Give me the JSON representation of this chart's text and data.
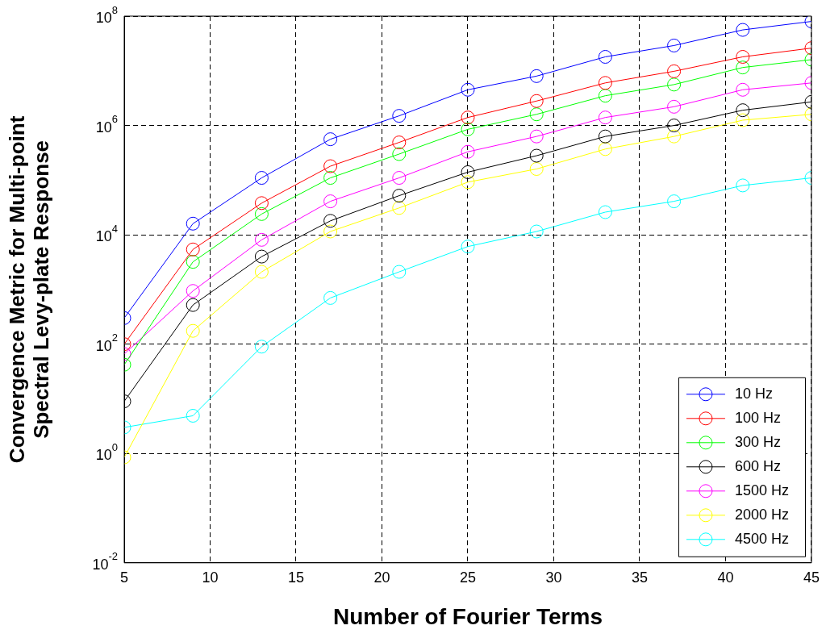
{
  "chart_data": {
    "type": "line",
    "xlabel": "Number of Fourier Terms",
    "ylabel": "Convergence Metric for Multi-point\nSpectral Levy-plate Response",
    "x": [
      5,
      9,
      13,
      17,
      21,
      25,
      29,
      33,
      37,
      41,
      45
    ],
    "xlim": [
      5,
      45
    ],
    "xticks": [
      5,
      10,
      15,
      20,
      25,
      30,
      35,
      40,
      45
    ],
    "ylim": [
      0.01,
      100000000
    ],
    "yticks": [
      {
        "value": 0.01,
        "label": "10$^{-2}$"
      },
      {
        "value": 1,
        "label": "10$^{0}$"
      },
      {
        "value": 100,
        "label": "10$^{2}$"
      },
      {
        "value": 10000,
        "label": "10$^{4}$"
      },
      {
        "value": 1000000,
        "label": "10$^{6}$"
      },
      {
        "value": 100000000,
        "label": "10$^{8}$"
      }
    ],
    "log": "y",
    "grid": true,
    "legend": "bottom right",
    "marker": "circle",
    "line_style": "solid",
    "series": [
      {
        "name": "10 Hz",
        "color": "#0000ff",
        "values": [
          300,
          16000,
          110000,
          560000,
          1500000,
          4500000,
          8000000,
          18000000,
          29000000,
          56000000,
          80000000
        ]
      },
      {
        "name": "100 Hz",
        "color": "#ff0000",
        "values": [
          100,
          5400,
          38000,
          180000,
          490000,
          1400000,
          2800000,
          6000000,
          9800000,
          18000000,
          26000000
        ]
      },
      {
        "name": "300 Hz",
        "color": "#00ff00",
        "values": [
          42,
          3200,
          24000,
          110000,
          300000,
          850000,
          1600000,
          3500000,
          5600000,
          11500000,
          16000000
        ]
      },
      {
        "name": "600 Hz",
        "color": "#000000",
        "values": [
          9,
          520,
          4000,
          18000,
          52000,
          140000,
          280000,
          630000,
          1000000,
          1900000,
          2700000
        ]
      },
      {
        "name": "1500 Hz",
        "color": "#ff00ff",
        "values": [
          66,
          940,
          8100,
          41000,
          110000,
          330000,
          630000,
          1400000,
          2200000,
          4500000,
          6000000
        ]
      },
      {
        "name": "2000 Hz",
        "color": "#ffff00",
        "values": [
          0.85,
          175,
          2100,
          11500,
          31000,
          92000,
          160000,
          370000,
          630000,
          1250000,
          1600000
        ]
      },
      {
        "name": "4500 Hz",
        "color": "#00ffff",
        "values": [
          3,
          4.9,
          90,
          700,
          2100,
          6100,
          11500,
          26000,
          41000,
          80000,
          110000
        ]
      }
    ]
  }
}
